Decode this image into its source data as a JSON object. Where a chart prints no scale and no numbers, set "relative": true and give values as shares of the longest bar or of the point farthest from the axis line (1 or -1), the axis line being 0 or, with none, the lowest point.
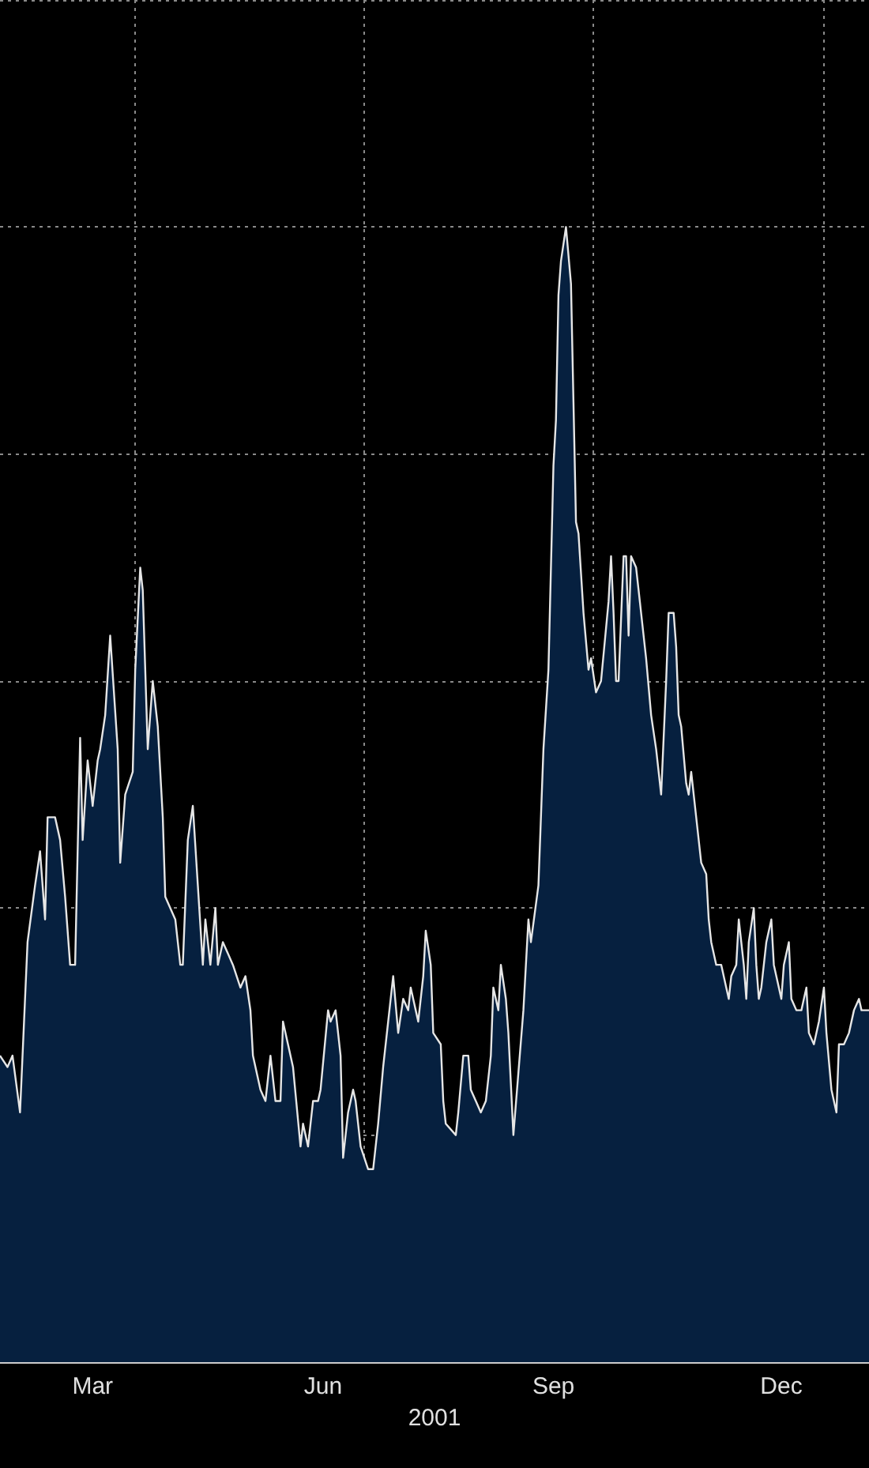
{
  "chart_data": {
    "type": "area",
    "relative": true,
    "xlabel": "2001",
    "color": "#06203f",
    "grid": true,
    "marker": "none",
    "line_style": "solid",
    "xlim": [
      "2001-02-06",
      "2002-01-19"
    ],
    "xticks": [
      {
        "value": "2001-03-15",
        "label": "Mar"
      },
      {
        "value": "2001-04-01",
        "label": null
      },
      {
        "value": "2001-06-15",
        "label": "Jun"
      },
      {
        "value": "2001-07-01",
        "label": null
      },
      {
        "value": "2001-09-15",
        "label": "Sep"
      },
      {
        "value": "2001-10-01",
        "label": null
      },
      {
        "value": "2001-12-15",
        "label": "Dec"
      },
      {
        "value": "2002-01-01",
        "label": null
      }
    ],
    "x": [
      "2001-02-06",
      "2001-02-09",
      "2001-02-11",
      "2001-02-14",
      "2001-02-17",
      "2001-02-20",
      "2001-02-22",
      "2001-02-24",
      "2001-02-25",
      "2001-02-28",
      "2001-03-02",
      "2001-03-04",
      "2001-03-06",
      "2001-03-08",
      "2001-03-10",
      "2001-03-11",
      "2001-03-13",
      "2001-03-15",
      "2001-03-17",
      "2001-03-18",
      "2001-03-20",
      "2001-03-22",
      "2001-03-25",
      "2001-03-26",
      "2001-03-28",
      "2001-03-31",
      "2001-04-01",
      "2001-04-03",
      "2001-04-04",
      "2001-04-06",
      "2001-04-08",
      "2001-04-10",
      "2001-04-12",
      "2001-04-13",
      "2001-04-17",
      "2001-04-19",
      "2001-04-20",
      "2001-04-22",
      "2001-04-24",
      "2001-04-26",
      "2001-04-28",
      "2001-04-29",
      "2001-05-01",
      "2001-05-03",
      "2001-05-04",
      "2001-05-06",
      "2001-05-08",
      "2001-05-10",
      "2001-05-13",
      "2001-05-15",
      "2001-05-17",
      "2001-05-18",
      "2001-05-21",
      "2001-05-23",
      "2001-05-25",
      "2001-05-27",
      "2001-05-29",
      "2001-05-30",
      "2001-06-01",
      "2001-06-03",
      "2001-06-06",
      "2001-06-07",
      "2001-06-09",
      "2001-06-11",
      "2001-06-13",
      "2001-06-14",
      "2001-06-17",
      "2001-06-18",
      "2001-06-20",
      "2001-06-22",
      "2001-06-23",
      "2001-06-25",
      "2001-06-27",
      "2001-06-28",
      "2001-06-30",
      "2001-07-03",
      "2001-07-05",
      "2001-07-07",
      "2001-07-09",
      "2001-07-11",
      "2001-07-13",
      "2001-07-15",
      "2001-07-17",
      "2001-07-19",
      "2001-07-20",
      "2001-07-22",
      "2001-07-23",
      "2001-07-25",
      "2001-07-26",
      "2001-07-28",
      "2001-07-29",
      "2001-08-01",
      "2001-08-02",
      "2001-08-03",
      "2001-08-07",
      "2001-08-08",
      "2001-08-10",
      "2001-08-12",
      "2001-08-13",
      "2001-08-15",
      "2001-08-17",
      "2001-08-19",
      "2001-08-21",
      "2001-08-22",
      "2001-08-24",
      "2001-08-25",
      "2001-08-27",
      "2001-08-28",
      "2001-08-30",
      "2001-09-03",
      "2001-09-05",
      "2001-09-06",
      "2001-09-09",
      "2001-09-11",
      "2001-09-13",
      "2001-09-15",
      "2001-09-16",
      "2001-09-17",
      "2001-09-18",
      "2001-09-20",
      "2001-09-22",
      "2001-09-24",
      "2001-09-25",
      "2001-09-27",
      "2001-09-29",
      "2001-09-30",
      "2001-10-02",
      "2001-10-04",
      "2001-10-07",
      "2001-10-08",
      "2001-10-09",
      "2001-10-10",
      "2001-10-11",
      "2001-10-13",
      "2001-10-14",
      "2001-10-15",
      "2001-10-16",
      "2001-10-18",
      "2001-10-21",
      "2001-10-22",
      "2001-10-24",
      "2001-10-26",
      "2001-10-28",
      "2001-10-30",
      "2001-10-31",
      "2001-11-02",
      "2001-11-03",
      "2001-11-04",
      "2001-11-05",
      "2001-11-07",
      "2001-11-08",
      "2001-11-09",
      "2001-11-11",
      "2001-11-13",
      "2001-11-15",
      "2001-11-16",
      "2001-11-17",
      "2001-11-19",
      "2001-11-21",
      "2001-11-23",
      "2001-11-24",
      "2001-11-25",
      "2001-11-27",
      "2001-11-28",
      "2001-11-30",
      "2001-12-01",
      "2001-12-02",
      "2001-12-04",
      "2001-12-05",
      "2001-12-06",
      "2001-12-07",
      "2001-12-09",
      "2001-12-11",
      "2001-12-12",
      "2001-12-15",
      "2001-12-16",
      "2001-12-18",
      "2001-12-19",
      "2001-12-21",
      "2001-12-23",
      "2001-12-25",
      "2001-12-26",
      "2001-12-28",
      "2001-12-30",
      "2002-01-01",
      "2002-01-02",
      "2002-01-04",
      "2002-01-06",
      "2002-01-07",
      "2002-01-09",
      "2002-01-11",
      "2002-01-13",
      "2002-01-15",
      "2002-01-16",
      "2002-01-19"
    ],
    "values": [
      0.27,
      0.26,
      0.27,
      0.22,
      0.37,
      0.42,
      0.45,
      0.39,
      0.48,
      0.48,
      0.46,
      0.41,
      0.35,
      0.35,
      0.55,
      0.46,
      0.53,
      0.49,
      0.53,
      0.54,
      0.57,
      0.64,
      0.54,
      0.44,
      0.5,
      0.52,
      0.61,
      0.7,
      0.68,
      0.54,
      0.6,
      0.56,
      0.48,
      0.41,
      0.39,
      0.35,
      0.35,
      0.46,
      0.49,
      0.42,
      0.35,
      0.39,
      0.35,
      0.4,
      0.35,
      0.37,
      0.36,
      0.35,
      0.33,
      0.34,
      0.31,
      0.27,
      0.24,
      0.23,
      0.27,
      0.23,
      0.23,
      0.3,
      0.28,
      0.26,
      0.19,
      0.21,
      0.19,
      0.23,
      0.23,
      0.24,
      0.31,
      0.3,
      0.31,
      0.27,
      0.18,
      0.22,
      0.24,
      0.23,
      0.19,
      0.17,
      0.17,
      0.21,
      0.26,
      0.3,
      0.34,
      0.29,
      0.32,
      0.31,
      0.33,
      0.31,
      0.3,
      0.34,
      0.38,
      0.35,
      0.29,
      0.28,
      0.23,
      0.21,
      0.2,
      0.22,
      0.27,
      0.27,
      0.24,
      0.23,
      0.22,
      0.23,
      0.27,
      0.33,
      0.31,
      0.35,
      0.32,
      0.29,
      0.2,
      0.31,
      0.39,
      0.37,
      0.42,
      0.54,
      0.61,
      0.79,
      0.83,
      0.94,
      0.97,
      1,
      0.95,
      0.74,
      0.73,
      0.66,
      0.61,
      0.62,
      0.59,
      0.6,
      0.67,
      0.71,
      0.66,
      0.6,
      0.6,
      0.71,
      0.71,
      0.64,
      0.71,
      0.7,
      0.64,
      0.62,
      0.57,
      0.54,
      0.5,
      0.6,
      0.66,
      0.66,
      0.63,
      0.57,
      0.56,
      0.51,
      0.5,
      0.52,
      0.48,
      0.44,
      0.43,
      0.39,
      0.37,
      0.35,
      0.35,
      0.33,
      0.32,
      0.34,
      0.35,
      0.39,
      0.35,
      0.32,
      0.37,
      0.4,
      0.35,
      0.32,
      0.33,
      0.37,
      0.39,
      0.35,
      0.32,
      0.35,
      0.37,
      0.32,
      0.31,
      0.31,
      0.33,
      0.29,
      0.28,
      0.3,
      0.33,
      0.29,
      0.24,
      0.22,
      0.28,
      0.28,
      0.29,
      0.31,
      0.32,
      0.31,
      0.31
    ]
  }
}
